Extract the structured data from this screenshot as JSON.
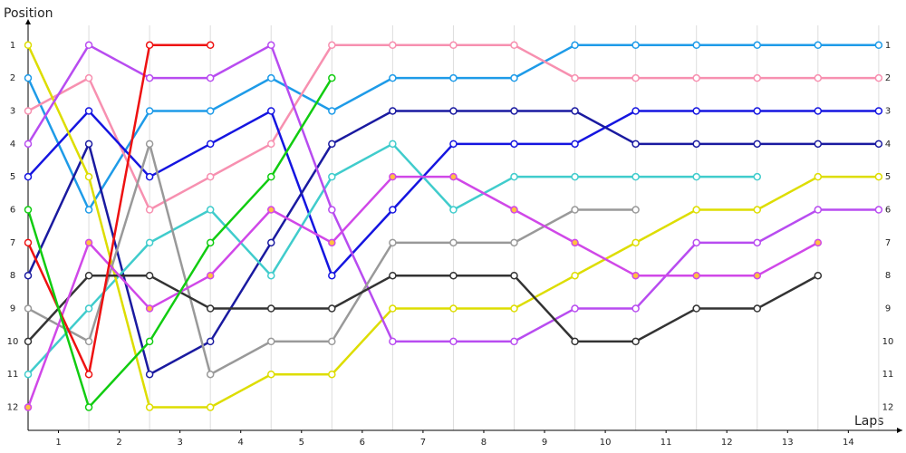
{
  "chart_data": {
    "type": "line",
    "title": "Position",
    "x_label": "Laps",
    "x": [
      0,
      1,
      2,
      3,
      4,
      5,
      6,
      7,
      8,
      9,
      10,
      11,
      12,
      13,
      14
    ],
    "xlim": [
      0,
      14.3
    ],
    "ylim": [
      0.4,
      12.7
    ],
    "y_reversed": true,
    "grid": true,
    "xticks": [
      {
        "value": 0.5,
        "label": "1"
      },
      {
        "value": 1.5,
        "label": "2"
      },
      {
        "value": 2.5,
        "label": "3"
      },
      {
        "value": 3.5,
        "label": "4"
      },
      {
        "value": 4.5,
        "label": "5"
      },
      {
        "value": 5.5,
        "label": "6"
      },
      {
        "value": 6.5,
        "label": "7"
      },
      {
        "value": 7.5,
        "label": "8"
      },
      {
        "value": 8.5,
        "label": "9"
      },
      {
        "value": 9.5,
        "label": "10"
      },
      {
        "value": 10.5,
        "label": "11"
      },
      {
        "value": 11.5,
        "label": "12"
      },
      {
        "value": 12.5,
        "label": "13"
      },
      {
        "value": 13.5,
        "label": "14"
      }
    ],
    "yticks": [
      1,
      2,
      3,
      4,
      5,
      6,
      7,
      8,
      9,
      10,
      11,
      12
    ],
    "series": [
      {
        "color": "#1e9be8",
        "marker_fill": "#ffffff",
        "values": [
          2,
          6,
          3,
          3,
          2,
          3,
          2,
          2,
          2,
          1,
          1,
          1,
          1,
          1,
          1
        ]
      },
      {
        "color": "#f790b0",
        "marker_fill": "#ffffff",
        "values": [
          3,
          2,
          6,
          5,
          4,
          1,
          1,
          1,
          1,
          2,
          2,
          2,
          2,
          2,
          2
        ]
      },
      {
        "color": "#1515e0",
        "marker_fill": "#ffffff",
        "values": [
          5,
          3,
          5,
          4,
          3,
          8,
          6,
          4,
          4,
          4,
          3,
          3,
          3,
          3,
          3
        ]
      },
      {
        "color": "#1a1aa0",
        "marker_fill": "#ffffff",
        "values": [
          8,
          4,
          11,
          10,
          7,
          4,
          3,
          3,
          3,
          3,
          4,
          4,
          4,
          4,
          4
        ]
      },
      {
        "color": "#40cccc",
        "marker_fill": "#ffffff",
        "values": [
          11,
          9,
          7,
          6,
          8,
          5,
          4,
          6,
          5,
          5,
          5,
          5,
          5,
          null,
          null
        ]
      },
      {
        "color": "#dddd00",
        "marker_fill": "#ffffff",
        "values": [
          1,
          5,
          12,
          12,
          11,
          11,
          9,
          9,
          9,
          8,
          7,
          6,
          6,
          5,
          5
        ]
      },
      {
        "color": "#b84cf0",
        "marker_fill": "#ffffff",
        "values": [
          4,
          1,
          2,
          2,
          1,
          6,
          10,
          10,
          10,
          9,
          9,
          7,
          7,
          6,
          6
        ]
      },
      {
        "color": "#999999",
        "marker_fill": "#ffffff",
        "values": [
          9,
          10,
          4,
          11,
          10,
          10,
          7,
          7,
          7,
          6,
          6,
          null,
          null,
          null,
          null
        ]
      },
      {
        "color": "#333333",
        "marker_fill": "#ffffff",
        "values": [
          10,
          8,
          8,
          9,
          9,
          9,
          8,
          8,
          8,
          10,
          10,
          9,
          9,
          8,
          null
        ]
      },
      {
        "color": "#d048e8",
        "marker_fill": "#ffc040",
        "values": [
          12,
          7,
          9,
          8,
          6,
          7,
          5,
          5,
          6,
          7,
          8,
          8,
          8,
          7,
          null
        ]
      },
      {
        "color": "#ee1111",
        "marker_fill": "#ffffff",
        "values": [
          7,
          11,
          1,
          1,
          null,
          null,
          null,
          null,
          null,
          null,
          null,
          null,
          null,
          null,
          null
        ]
      },
      {
        "color": "#11cc11",
        "marker_fill": "#ffffff",
        "values": [
          6,
          12,
          10,
          7,
          5,
          2,
          null,
          null,
          null,
          null,
          null,
          null,
          null,
          null,
          null
        ]
      }
    ]
  }
}
